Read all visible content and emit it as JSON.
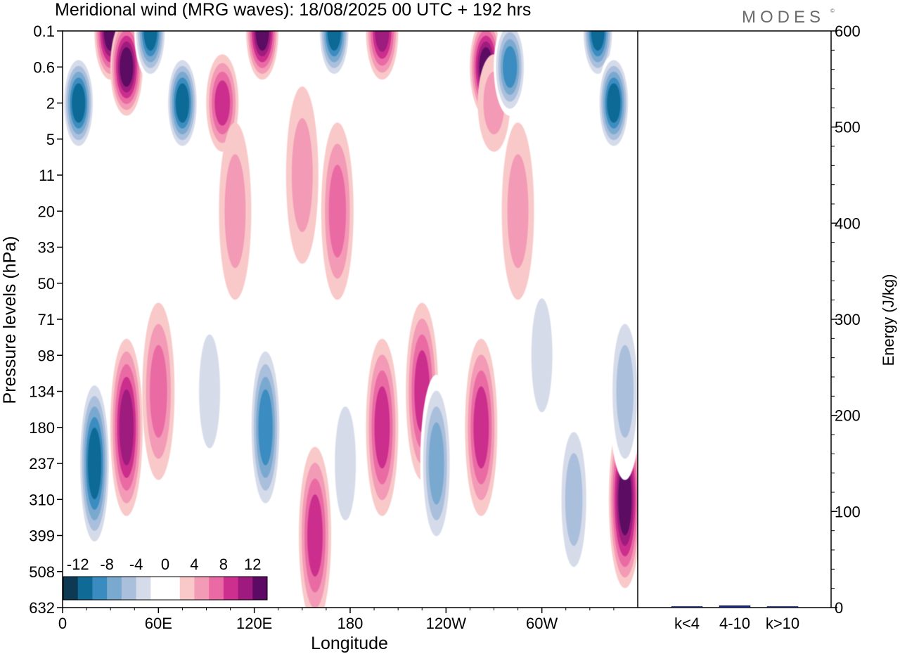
{
  "brand": {
    "logo_text": "MODES"
  },
  "chart_data": [
    {
      "type": "heatmap",
      "title": "Meridional wind (MRG waves):  18/08/2025  00 UTC  + 192 hrs",
      "xlabel": "Longitude",
      "ylabel": "Pressure levels (hPa)",
      "x_tick_labels": [
        "0",
        "60E",
        "120E",
        "180",
        "120W",
        "60W"
      ],
      "x_tick_values_deg_east": [
        0,
        60,
        120,
        180,
        240,
        300
      ],
      "xlim": [
        0,
        360
      ],
      "y_tick_labels": [
        "0.1",
        "0.6",
        "2",
        "5",
        "11",
        "20",
        "33",
        "50",
        "71",
        "98",
        "134",
        "180",
        "237",
        "310",
        "399",
        "508",
        "632"
      ],
      "y_axis_direction": "pressure increasing downward",
      "colorbar": {
        "labels": [
          "-12",
          "-8",
          "-4",
          "0",
          "4",
          "8",
          "12"
        ],
        "label_values": [
          -12,
          -8,
          -4,
          0,
          4,
          8,
          12
        ],
        "colors": [
          "#0d3a52",
          "#0f6a96",
          "#3a8cc0",
          "#7aa9cf",
          "#a9bfdc",
          "#d6dbea",
          "#ffffff",
          "#ffffff",
          "#f9c9c9",
          "#f39ab6",
          "#ea6aa4",
          "#cc2f8e",
          "#9e1a7e",
          "#5c0a63"
        ]
      },
      "features": [
        {
          "lon": 10,
          "level": "2",
          "value": -12
        },
        {
          "lon": 20,
          "level": "237",
          "value": -12
        },
        {
          "lon": 30,
          "level": "0.1",
          "value": 12
        },
        {
          "lon": 40,
          "level": "0.6",
          "value": 12
        },
        {
          "lon": 40,
          "level": "180",
          "value": 10
        },
        {
          "lon": 55,
          "level": "0.1",
          "value": -12
        },
        {
          "lon": 60,
          "level": "134",
          "value": 6
        },
        {
          "lon": 75,
          "level": "2",
          "value": -12
        },
        {
          "lon": 92,
          "level": "134",
          "value": -4
        },
        {
          "lon": 100,
          "level": "2",
          "value": 8
        },
        {
          "lon": 108,
          "level": "20",
          "value": 5
        },
        {
          "lon": 125,
          "level": "0.1",
          "value": 12
        },
        {
          "lon": 127,
          "level": "180",
          "value": -10
        },
        {
          "lon": 150,
          "level": "11",
          "value": 4
        },
        {
          "lon": 158,
          "level": "399",
          "value": 9
        },
        {
          "lon": 170,
          "level": "0.1",
          "value": -12
        },
        {
          "lon": 172,
          "level": "20",
          "value": 6
        },
        {
          "lon": 177,
          "level": "237",
          "value": -5
        },
        {
          "lon": 200,
          "level": "0.1",
          "value": 10
        },
        {
          "lon": 200,
          "level": "180",
          "value": 9
        },
        {
          "lon": 225,
          "level": "134",
          "value": 9
        },
        {
          "lon": 234,
          "level": "237",
          "value": -9
        },
        {
          "lon": 262,
          "level": "180",
          "value": 8
        },
        {
          "lon": 265,
          "level": "0.6",
          "value": 12
        },
        {
          "lon": 270,
          "level": "2",
          "value": 5
        },
        {
          "lon": 280,
          "level": "0.6",
          "value": -10
        },
        {
          "lon": 285,
          "level": "20",
          "value": 4
        },
        {
          "lon": 300,
          "level": "98",
          "value": -4
        },
        {
          "lon": 320,
          "level": "310",
          "value": -6
        },
        {
          "lon": 335,
          "level": "0.1",
          "value": -12
        },
        {
          "lon": 345,
          "level": "2",
          "value": -12
        },
        {
          "lon": 352,
          "level": "310",
          "value": 12
        },
        {
          "lon": 352,
          "level": "134",
          "value": -6
        }
      ]
    },
    {
      "type": "bar",
      "ylabel": "Energy (J/kg)",
      "ylim": [
        0,
        600
      ],
      "y_tick_labels": [
        "0",
        "100",
        "200",
        "300",
        "400",
        "500",
        "600"
      ],
      "categories": [
        "k<4",
        "4-10",
        "k>10"
      ],
      "values": [
        0,
        2,
        0
      ],
      "colors": [
        "#1b2c8f",
        "#1b2c8f",
        "#1b2c8f"
      ]
    }
  ]
}
